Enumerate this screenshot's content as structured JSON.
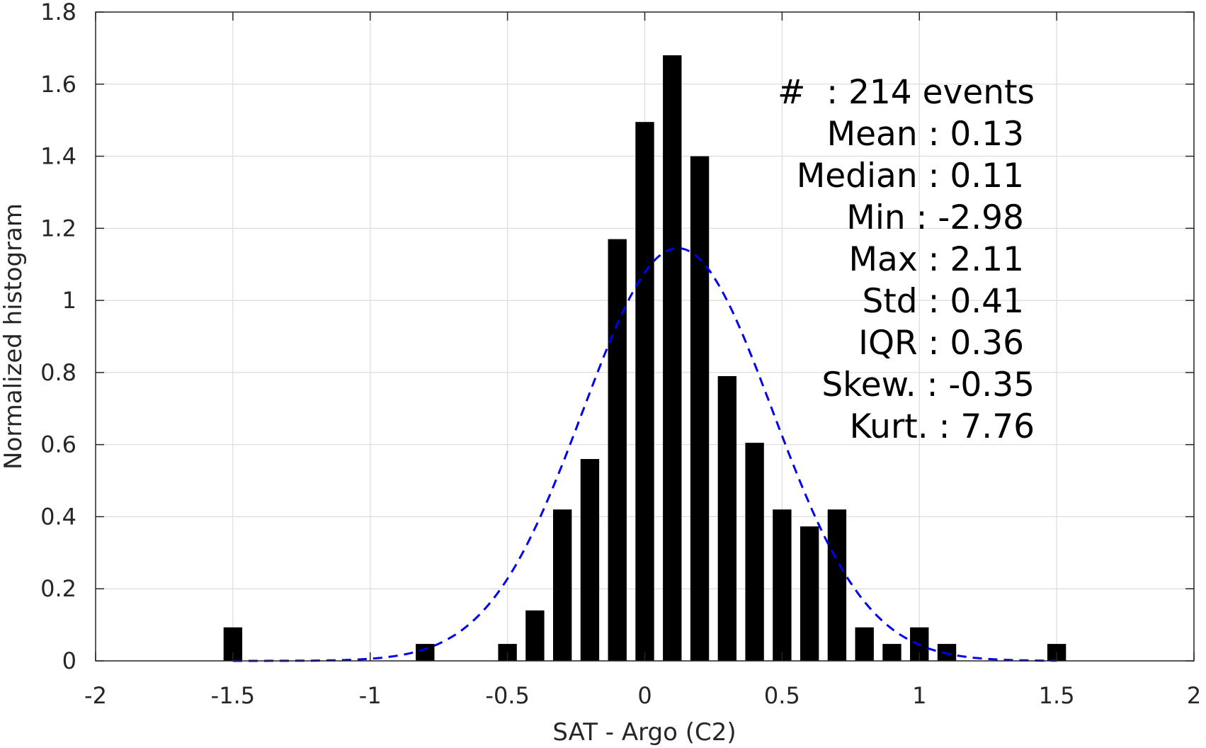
{
  "chart_data": {
    "type": "bar",
    "title": "",
    "xlabel": "SAT - Argo (C2)",
    "ylabel": "Normalized histogram",
    "xlim": [
      -2,
      2
    ],
    "ylim": [
      0,
      1.8
    ],
    "xticks": [
      -2,
      -1.5,
      -1,
      -0.5,
      0,
      0.5,
      1,
      1.5,
      2
    ],
    "xtick_labels": [
      "-2",
      "-1.5",
      "-1",
      "-0.5",
      "0",
      "0.5",
      "1",
      "1.5",
      "2"
    ],
    "yticks": [
      0,
      0.2,
      0.4,
      0.6,
      0.8,
      1,
      1.2,
      1.4,
      1.6,
      1.8
    ],
    "ytick_labels": [
      "0",
      "0.2",
      "0.4",
      "0.6",
      "0.8",
      "1",
      "1.2",
      "1.4",
      "1.6",
      "1.8"
    ],
    "grid": true,
    "bin_width": 0.1,
    "bars": [
      {
        "x": -1.5,
        "y": 0.093
      },
      {
        "x": -0.8,
        "y": 0.047
      },
      {
        "x": -0.5,
        "y": 0.047
      },
      {
        "x": -0.4,
        "y": 0.14
      },
      {
        "x": -0.3,
        "y": 0.42
      },
      {
        "x": -0.2,
        "y": 0.56
      },
      {
        "x": -0.1,
        "y": 1.17
      },
      {
        "x": 0.0,
        "y": 1.495
      },
      {
        "x": 0.1,
        "y": 1.68
      },
      {
        "x": 0.2,
        "y": 1.4
      },
      {
        "x": 0.3,
        "y": 0.79
      },
      {
        "x": 0.4,
        "y": 0.605
      },
      {
        "x": 0.5,
        "y": 0.42
      },
      {
        "x": 0.6,
        "y": 0.373
      },
      {
        "x": 0.7,
        "y": 0.42
      },
      {
        "x": 0.8,
        "y": 0.093
      },
      {
        "x": 0.9,
        "y": 0.047
      },
      {
        "x": 1.0,
        "y": 0.093
      },
      {
        "x": 1.1,
        "y": 0.047
      },
      {
        "x": 1.5,
        "y": 0.047
      }
    ],
    "bar_color": "#000000",
    "fit_curve": {
      "style": "dashed",
      "color": "#0000ee",
      "x_range": [
        -1.5,
        1.5
      ],
      "mean": 0.12,
      "sigma": 0.345,
      "peak": 1.145
    },
    "annotations": [
      "#  : 214 events",
      "Mean : 0.13",
      "Median : 0.11",
      "Min : -2.98",
      "Max : 2.11",
      "Std : 0.41",
      "IQR : 0.36",
      "Skew. : -0.35",
      "Kurt. : 7.76"
    ]
  }
}
